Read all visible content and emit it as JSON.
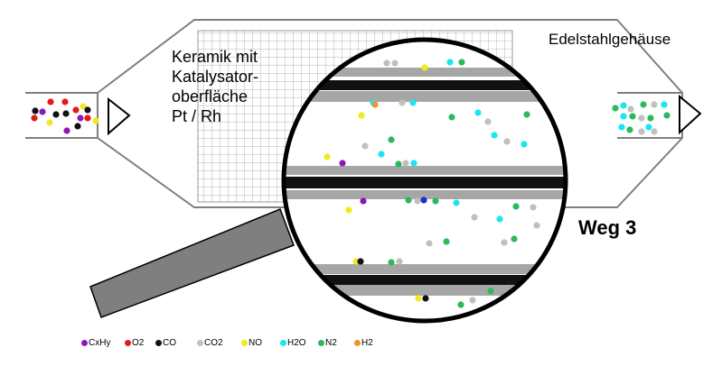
{
  "labels": {
    "ceramic_lines": [
      "Keramik mit",
      "Katalysator-",
      "oberfläche",
      "Pt / Rh"
    ],
    "housing": "Edelstahlgehäuse",
    "path": "Weg 3"
  },
  "legend": [
    {
      "id": "cxhy",
      "label": "CxHy",
      "color": "#8a1ab5"
    },
    {
      "id": "o2",
      "label": "O2",
      "color": "#e21a1a"
    },
    {
      "id": "co",
      "label": "CO",
      "color": "#111111"
    },
    {
      "id": "co2",
      "label": "CO2",
      "color": "#c0c0c0"
    },
    {
      "id": "no",
      "label": "NO",
      "color": "#f2ea1d"
    },
    {
      "id": "h2o",
      "label": "H2O",
      "color": "#19e6f0"
    },
    {
      "id": "n2",
      "label": "N2",
      "color": "#2db85a"
    },
    {
      "id": "h2",
      "label": "H2",
      "color": "#f0922d"
    }
  ],
  "colors": {
    "outline": "#7f7f7f",
    "magnifier_handle": "#7f7f7f",
    "channel_wall": "#a6a6a6",
    "channel_core": "#111111"
  }
}
